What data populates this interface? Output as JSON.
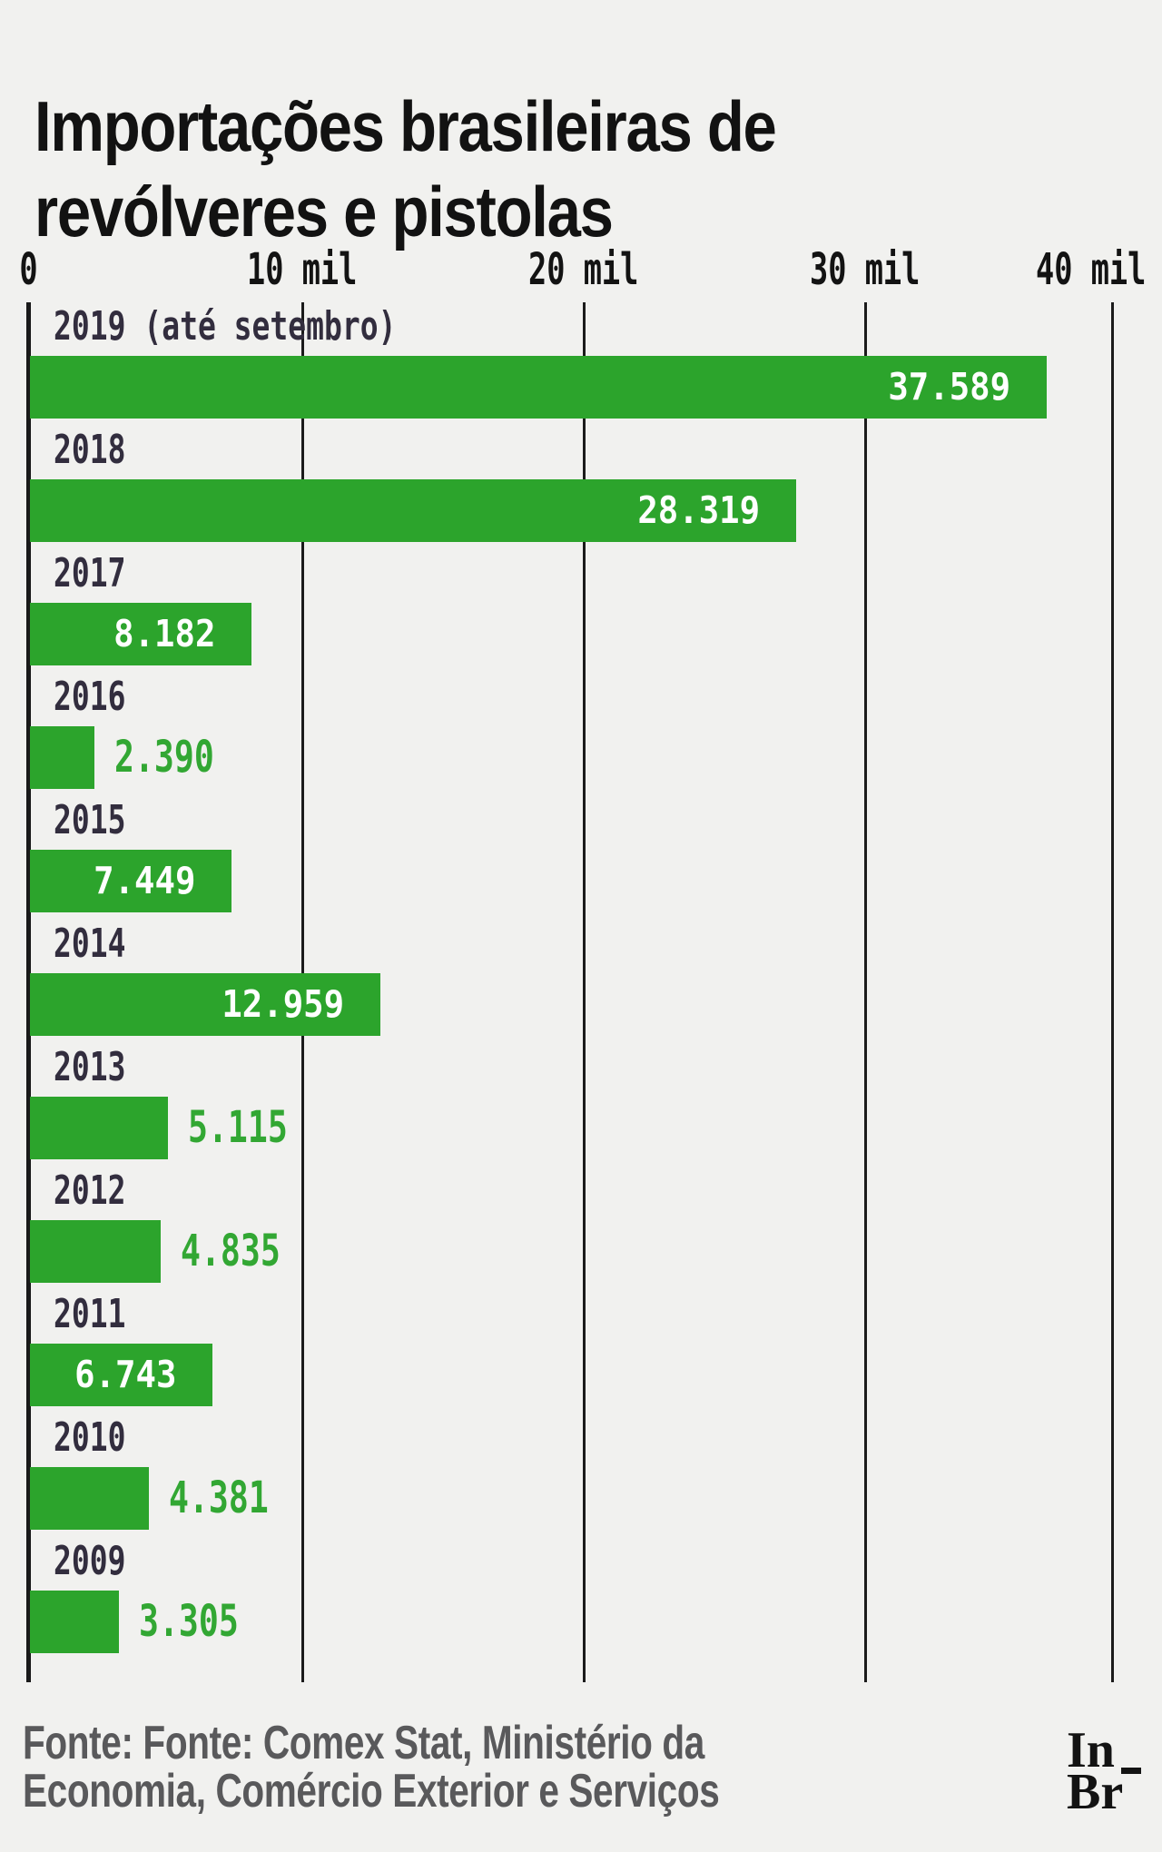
{
  "page": {
    "background_color": "#F1F1EF"
  },
  "header": {
    "title": "Importações brasileiras de revólveres e pistolas"
  },
  "chart_data": {
    "type": "bar",
    "orientation": "horizontal",
    "title": "Importações brasileiras de revólveres e pistolas",
    "categories": [
      "2019 (até setembro)",
      "2018",
      "2017",
      "2016",
      "2015",
      "2014",
      "2013",
      "2012",
      "2011",
      "2010",
      "2009"
    ],
    "values": [
      37589,
      28319,
      8182,
      2390,
      7449,
      12959,
      5115,
      4835,
      6743,
      4381,
      3305
    ],
    "value_labels": [
      "37.589",
      "28.319",
      "8.182",
      "2.390",
      "7.449",
      "12.959",
      "5.115",
      "4.835",
      "6.743",
      "4.381",
      "3.305"
    ],
    "xlim": [
      0,
      40000
    ],
    "x_ticks": [
      {
        "value": 0,
        "label": "0"
      },
      {
        "value": 10000,
        "label": "10 mil"
      },
      {
        "value": 20000,
        "label": "20 mil"
      },
      {
        "value": 30000,
        "label": "30 mil"
      },
      {
        "value": 40000,
        "label": "40 mil"
      }
    ],
    "grid": "vertical-lines",
    "legend": "none",
    "bar_color": "#2CA42C",
    "value_label_inside_color": "#FFFFFF",
    "value_label_outside_color": "#32A733",
    "category_label_color": "#322D3E",
    "inside_label_min_value": 6000
  },
  "footer": {
    "source_text": "Fonte: Fonte: Comex Stat, Ministério da Economia, Comércio Exterior e Serviços"
  },
  "logo": {
    "line1": "In",
    "line2": "Br"
  }
}
